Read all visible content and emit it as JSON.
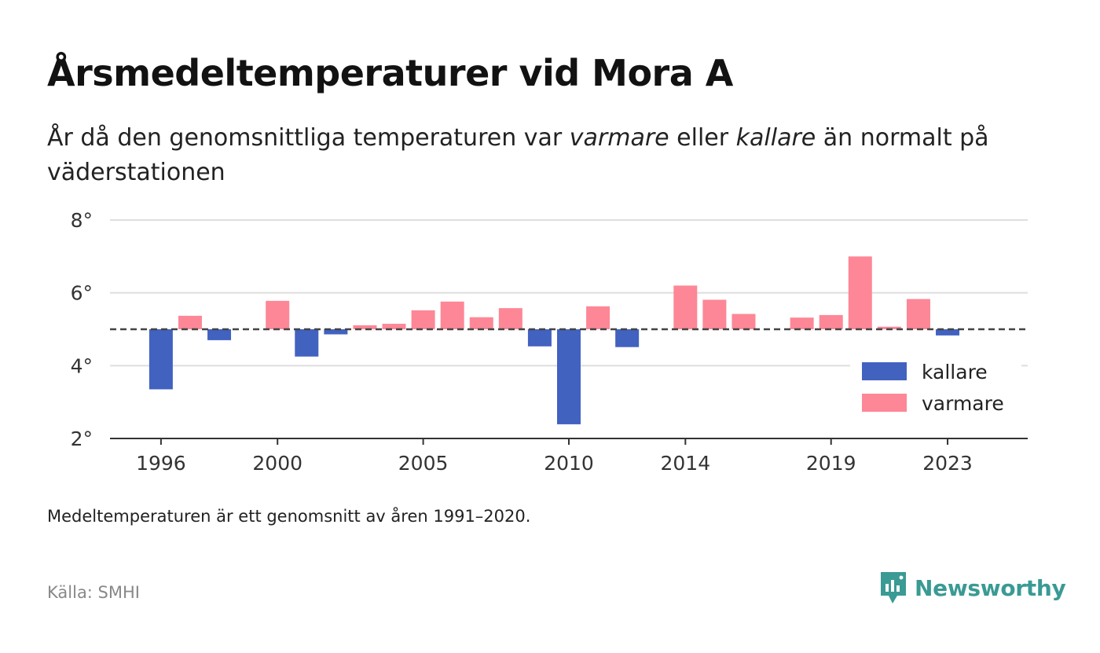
{
  "title": "Årsmedeltemperaturer vid Mora A",
  "subtitle": {
    "part1": "År då den genomsnittliga temperaturen var ",
    "em1": "varmare",
    "part2": " eller ",
    "em2": "kallare",
    "part3": " än normalt på väderstationen"
  },
  "note": "Medeltemperaturen är ett genomsnitt av åren 1991–2020.",
  "source": "Källa: SMHI",
  "logo": {
    "text": "Newsworthy",
    "icon": "newsworthy-logo-icon",
    "color": "#3a9a94"
  },
  "chart_data": {
    "type": "bar",
    "baseline": 5.0,
    "ylim": [
      2,
      8
    ],
    "yticks": [
      {
        "value": 2,
        "label": "2°"
      },
      {
        "value": 4,
        "label": "4°"
      },
      {
        "value": 6,
        "label": "6°"
      },
      {
        "value": 8,
        "label": "8°"
      }
    ],
    "xticks": [
      {
        "value": 1996,
        "label": "1996"
      },
      {
        "value": 2000,
        "label": "2000"
      },
      {
        "value": 2005,
        "label": "2005"
      },
      {
        "value": 2010,
        "label": "2010"
      },
      {
        "value": 2014,
        "label": "2014"
      },
      {
        "value": 2019,
        "label": "2019"
      },
      {
        "value": 2023,
        "label": "2023"
      }
    ],
    "xlim": [
      1994.25,
      2025.75
    ],
    "grid": true,
    "legend_position": "bottom-right",
    "series": [
      {
        "name": "kallare",
        "color": "#4262c0"
      },
      {
        "name": "varmare",
        "color": "#fd8796"
      }
    ],
    "bars": [
      {
        "year": 1996,
        "value": 3.35
      },
      {
        "year": 1997,
        "value": 5.37
      },
      {
        "year": 1998,
        "value": 4.7
      },
      {
        "year": 2000,
        "value": 5.78
      },
      {
        "year": 2001,
        "value": 4.25
      },
      {
        "year": 2002,
        "value": 4.86
      },
      {
        "year": 2003,
        "value": 5.11
      },
      {
        "year": 2004,
        "value": 5.15
      },
      {
        "year": 2005,
        "value": 5.52
      },
      {
        "year": 2006,
        "value": 5.76
      },
      {
        "year": 2007,
        "value": 5.33
      },
      {
        "year": 2008,
        "value": 5.58
      },
      {
        "year": 2009,
        "value": 4.53
      },
      {
        "year": 2010,
        "value": 2.39
      },
      {
        "year": 2011,
        "value": 5.63
      },
      {
        "year": 2012,
        "value": 4.51
      },
      {
        "year": 2014,
        "value": 6.2
      },
      {
        "year": 2015,
        "value": 5.81
      },
      {
        "year": 2016,
        "value": 5.42
      },
      {
        "year": 2018,
        "value": 5.32
      },
      {
        "year": 2019,
        "value": 5.39
      },
      {
        "year": 2020,
        "value": 7.0
      },
      {
        "year": 2021,
        "value": 5.07
      },
      {
        "year": 2022,
        "value": 5.83
      },
      {
        "year": 2023,
        "value": 4.83
      }
    ]
  }
}
